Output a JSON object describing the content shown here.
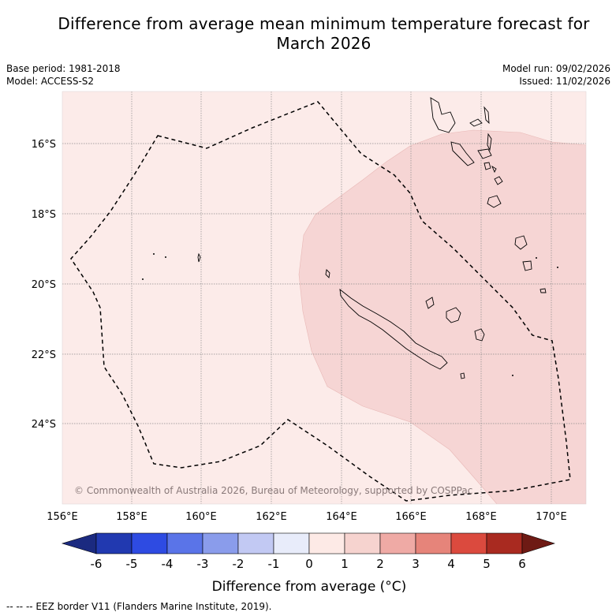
{
  "header": {
    "title_line1": "Difference from average mean minimum temperature forecast for",
    "title_line2": "March 2026",
    "base_period": "Base period: 1981-2018",
    "model": "Model: ACCESS-S2",
    "model_run": "Model run: 09/02/2026",
    "issued": "Issued: 11/02/2026"
  },
  "map": {
    "lon_ticks": [
      "156°E",
      "158°E",
      "160°E",
      "162°E",
      "164°E",
      "166°E",
      "168°E",
      "170°E"
    ],
    "lat_ticks": [
      "16°S",
      "18°S",
      "20°S",
      "22°S",
      "24°S"
    ],
    "copyright": "© Commonwealth of Australia 2026, Bureau of Meteorology, supported by COSPPac",
    "anomaly_regions": [
      {
        "category": "0 to 1",
        "color": "#fcebe9"
      },
      {
        "category": "1 to 2",
        "color": "#f6d5d4"
      }
    ],
    "colors": {
      "grid": "#8a8a8a",
      "coast": "#000000",
      "eez": "#000000"
    }
  },
  "colorbar": {
    "labels": [
      "-6",
      "-5",
      "-4",
      "-3",
      "-2",
      "-1",
      "0",
      "1",
      "2",
      "3",
      "4",
      "5",
      "6"
    ],
    "colors": [
      "#1b2a80",
      "#2139b0",
      "#2e4be2",
      "#5a74e8",
      "#8a9ceb",
      "#c2c9f3",
      "#e8ecfa",
      "#fdeae6",
      "#f6d3cf",
      "#efaaa5",
      "#e6847a",
      "#db4a3e",
      "#a92a20",
      "#6e1a14"
    ],
    "title": "Difference from average (°C)"
  },
  "footnote": "--  --  -- EEZ border V11 (Flanders Marine Institute, 2019)."
}
